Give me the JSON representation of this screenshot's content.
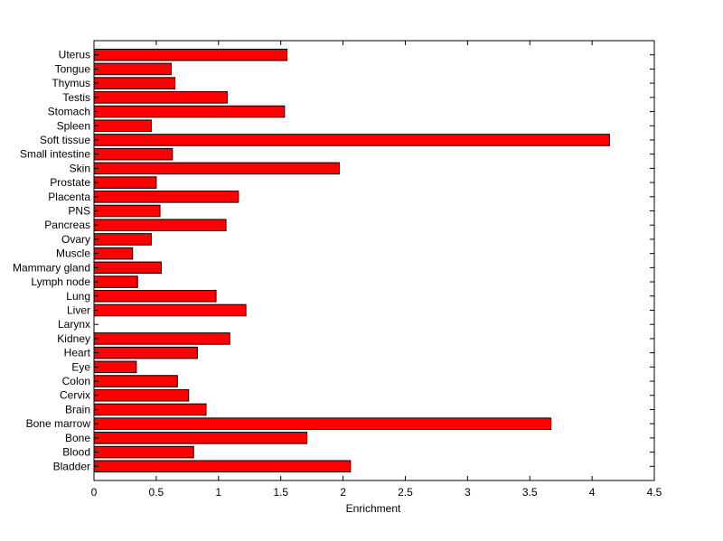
{
  "chart_data": {
    "type": "bar",
    "orientation": "horizontal",
    "categories": [
      "Uterus",
      "Tongue",
      "Thymus",
      "Testis",
      "Stomach",
      "Spleen",
      "Soft tissue",
      "Small intestine",
      "Skin",
      "Prostate",
      "Placenta",
      "PNS",
      "Pancreas",
      "Ovary",
      "Muscle",
      "Mammary gland",
      "Lymph node",
      "Lung",
      "Liver",
      "Larynx",
      "Kidney",
      "Heart",
      "Eye",
      "Colon",
      "Cervix",
      "Brain",
      "Bone marrow",
      "Bone",
      "Blood",
      "Bladder"
    ],
    "values": [
      1.55,
      0.62,
      0.65,
      1.07,
      1.53,
      0.46,
      4.14,
      0.63,
      1.97,
      0.5,
      1.16,
      0.53,
      1.06,
      0.46,
      0.31,
      0.54,
      0.35,
      0.98,
      1.22,
      0.0,
      1.09,
      0.83,
      0.34,
      0.67,
      0.76,
      0.9,
      3.67,
      1.71,
      0.8,
      2.06
    ],
    "xlabel": "Enrichment",
    "ylabel": "",
    "xlim": [
      0,
      4.5
    ],
    "xticks": [
      "0",
      "0.5",
      "1",
      "1.5",
      "2",
      "2.5",
      "3",
      "3.5",
      "4",
      "4.5"
    ],
    "grid": false,
    "bar_color": "#ff0000",
    "bar_edge_color": "#000000"
  }
}
